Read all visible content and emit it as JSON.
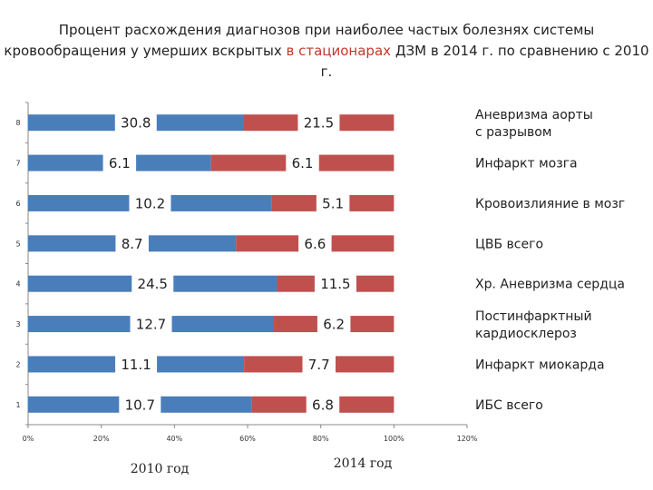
{
  "title": {
    "line1": "Процент расхождения диагнозов при наиболее частых болезнях системы",
    "line2_before": "кровообращения у умерших вскрытых",
    "line2_highlight": "в стационарах",
    "line2_after": "ДЗМ в 2014 г. по сравнению с 2010 г."
  },
  "colors": {
    "series2010": "#4a7ebb",
    "series2014": "#c0504d",
    "highlight": "#c0392b"
  },
  "chart_data": {
    "type": "bar",
    "orientation": "horizontal",
    "stacked": "100%",
    "categories": [
      "1",
      "2",
      "3",
      "4",
      "5",
      "6",
      "7",
      "8"
    ],
    "category_labels": [
      "ИБС всего",
      "Инфаркт миокарда",
      "Постинфарктный кардиосклероз",
      "Хр. Аневризма сердца",
      "ЦВБ всего",
      "Кровоизлияние в мозг",
      "Инфаркт мозга",
      "Аневризма аорты с разрывом"
    ],
    "series": [
      {
        "name": "2010 год",
        "values": [
          10.7,
          11.1,
          12.7,
          24.5,
          8.7,
          10.2,
          6.1,
          30.8
        ]
      },
      {
        "name": "2014 год",
        "values": [
          6.8,
          7.7,
          6.2,
          11.5,
          6.6,
          5.1,
          6.1,
          21.5
        ]
      }
    ],
    "x_ticks": [
      "0%",
      "20%",
      "40%",
      "60%",
      "80%",
      "100%",
      "120%"
    ],
    "xlim": [
      0,
      120
    ],
    "grid": false,
    "legend_placement": "bottom"
  }
}
